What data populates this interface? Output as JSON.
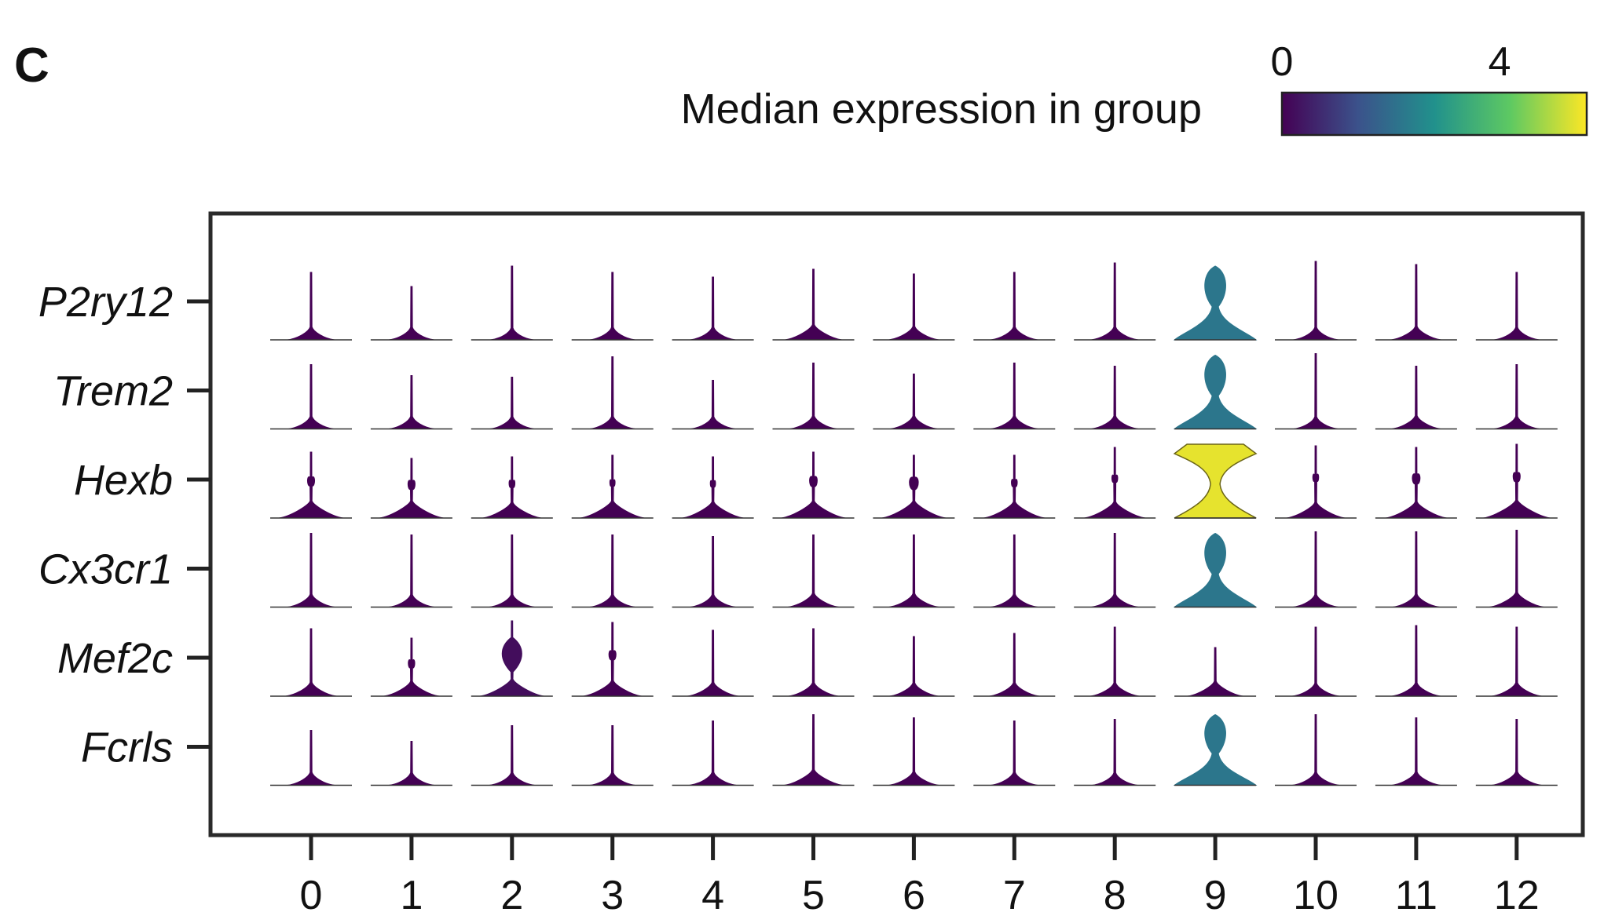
{
  "panel_label": "C",
  "colorbar": {
    "label": "Median expression in group",
    "tick_labels": [
      "0",
      "4"
    ],
    "tick_values": [
      0,
      4
    ],
    "range": [
      0,
      5.6
    ],
    "colormap": "viridis",
    "colors": [
      "#440154",
      "#3b528b",
      "#21918c",
      "#5ec962",
      "#fde725"
    ]
  },
  "chart_data": {
    "type": "violin",
    "layout": "stacked violin plot",
    "clusters": [
      "0",
      "1",
      "2",
      "3",
      "4",
      "5",
      "6",
      "7",
      "8",
      "9",
      "10",
      "11",
      "12"
    ],
    "genes": [
      "P2ry12",
      "Trem2",
      "Hexb",
      "Cx3cr1",
      "Mef2c",
      "Fcrls"
    ],
    "median_expression": [
      [
        0,
        0,
        0,
        0,
        0,
        0,
        0,
        0,
        0,
        2.2,
        0,
        0,
        0
      ],
      [
        0,
        0,
        0,
        0,
        0,
        0,
        0,
        0,
        0,
        2.2,
        0,
        0,
        0
      ],
      [
        0,
        0,
        0,
        0,
        0,
        0,
        0,
        0,
        0,
        5.4,
        0,
        0,
        0
      ],
      [
        0,
        0,
        0,
        0,
        0,
        0,
        0,
        0,
        0,
        2.2,
        0,
        0,
        0
      ],
      [
        0,
        0,
        0.2,
        0,
        0,
        0,
        0,
        0,
        0,
        0,
        0,
        0,
        0
      ],
      [
        0,
        0,
        0,
        0,
        0,
        0,
        0,
        0,
        0,
        2.2,
        0,
        0,
        0
      ]
    ],
    "violin_max_height": [
      [
        0.86,
        0.68,
        0.94,
        0.86,
        0.8,
        0.9,
        0.84,
        0.86,
        0.98,
        0.94,
        1.0,
        0.96,
        0.86
      ],
      [
        0.82,
        0.68,
        0.66,
        0.92,
        0.62,
        0.84,
        0.7,
        0.84,
        0.8,
        0.94,
        0.96,
        0.8,
        0.82
      ],
      [
        0.84,
        0.76,
        0.78,
        0.8,
        0.78,
        0.84,
        0.8,
        0.8,
        0.9,
        0.94,
        0.92,
        0.9,
        0.94
      ],
      [
        0.94,
        0.92,
        0.92,
        0.92,
        0.9,
        0.92,
        0.92,
        0.92,
        0.94,
        0.94,
        0.96,
        0.96,
        0.98
      ],
      [
        0.86,
        0.74,
        0.96,
        0.94,
        0.84,
        0.86,
        0.76,
        0.8,
        0.88,
        0.62,
        0.88,
        0.9,
        0.88
      ],
      [
        0.7,
        0.56,
        0.76,
        0.76,
        0.82,
        0.9,
        0.86,
        0.82,
        0.84,
        0.9,
        0.9,
        0.86,
        0.84
      ]
    ],
    "base_bulge": [
      [
        0.25,
        0.22,
        0.18,
        0.22,
        0.22,
        0.42,
        0.3,
        0.25,
        0.25,
        0.0,
        0.22,
        0.3,
        0.22
      ],
      [
        0.22,
        0.22,
        0.2,
        0.22,
        0.2,
        0.25,
        0.25,
        0.25,
        0.25,
        0.0,
        0.2,
        0.28,
        0.22
      ],
      [
        0.55,
        0.55,
        0.45,
        0.55,
        0.5,
        0.55,
        0.55,
        0.5,
        0.5,
        0.0,
        0.45,
        0.5,
        0.6
      ],
      [
        0.25,
        0.22,
        0.22,
        0.22,
        0.22,
        0.32,
        0.3,
        0.25,
        0.25,
        0.0,
        0.22,
        0.25,
        0.38
      ],
      [
        0.32,
        0.4,
        0.55,
        0.45,
        0.32,
        0.3,
        0.28,
        0.3,
        0.28,
        0.4,
        0.25,
        0.28,
        0.3
      ],
      [
        0.25,
        0.22,
        0.22,
        0.22,
        0.25,
        0.45,
        0.3,
        0.25,
        0.22,
        0.0,
        0.25,
        0.28,
        0.3
      ]
    ],
    "upper_bulge": [
      [
        0,
        0,
        0,
        0,
        0,
        0,
        0,
        0,
        0,
        0,
        0,
        0,
        0
      ],
      [
        0,
        0,
        0,
        0,
        0,
        0,
        0,
        0,
        0,
        0,
        0,
        0,
        0
      ],
      [
        0.14,
        0.14,
        0.1,
        0.08,
        0.08,
        0.16,
        0.2,
        0.1,
        0.1,
        0,
        0.1,
        0.16,
        0.14
      ],
      [
        0,
        0,
        0,
        0,
        0,
        0,
        0,
        0,
        0,
        0,
        0,
        0,
        0
      ],
      [
        0,
        0.12,
        0.55,
        0.14,
        0,
        0,
        0,
        0,
        0,
        0,
        0,
        0,
        0
      ],
      [
        0,
        0,
        0,
        0,
        0,
        0,
        0,
        0,
        0,
        0,
        0,
        0,
        0
      ]
    ],
    "xlabel": "",
    "ylabel": "",
    "grid": false,
    "legend": "colorbar top-right"
  }
}
